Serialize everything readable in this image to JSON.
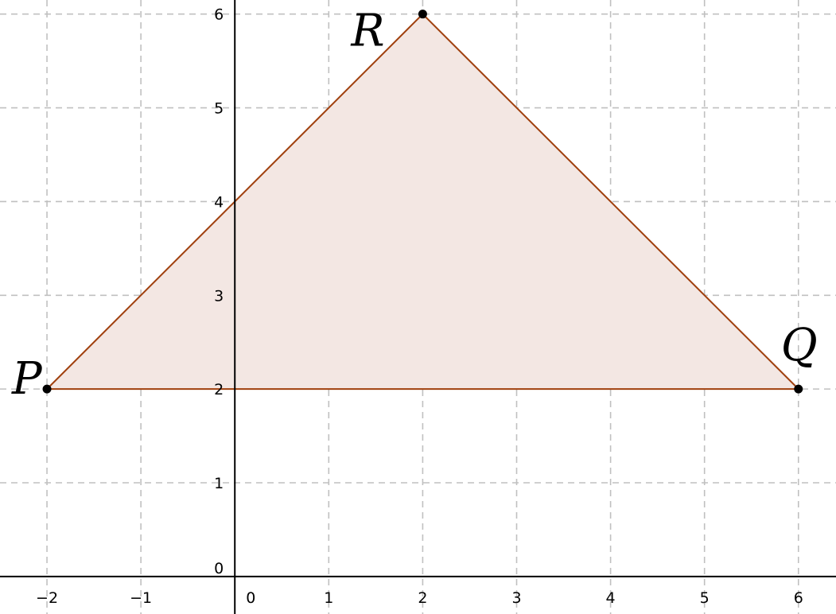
{
  "chart_data": {
    "type": "geometry",
    "x_range": [
      -2.5,
      6.4
    ],
    "y_range": [
      -0.4,
      6.15
    ],
    "x_ticks": [
      -2,
      -1,
      0,
      1,
      2,
      3,
      4,
      5,
      6
    ],
    "y_ticks": [
      0,
      1,
      2,
      3,
      4,
      5,
      6
    ],
    "x_tick_labels": [
      "−2",
      "−1",
      "0",
      "1",
      "2",
      "3",
      "4",
      "5",
      "6"
    ],
    "y_tick_labels": [
      "0",
      "1",
      "2",
      "3",
      "4",
      "5",
      "6"
    ],
    "grid": true,
    "points": [
      {
        "name": "P",
        "x": -2,
        "y": 2
      },
      {
        "name": "Q",
        "x": 6,
        "y": 2
      },
      {
        "name": "R",
        "x": 2,
        "y": 6
      }
    ],
    "polygon": {
      "vertices": [
        "P",
        "Q",
        "R"
      ],
      "fill": "#f3e7e3",
      "edge": "#a0400e"
    }
  },
  "labels": {
    "P": "P",
    "Q": "Q",
    "R": "R"
  }
}
